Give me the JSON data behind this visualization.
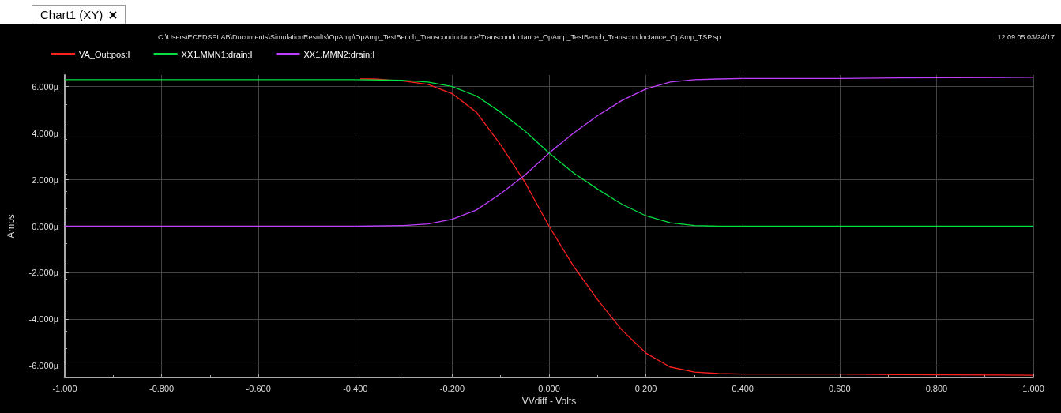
{
  "chart_data": {
    "type": "line",
    "xlabel": "VVdiff - Volts",
    "ylabel": "Amps",
    "annotations": [
      "Chart1 (XY)",
      "C:\\Users\\ECEDSPLAB\\Documents\\SimulationResults\\OpAmp\\OpAmp_TestBench_Transconductance\\Transconductance_OpAmp_TestBench_Transconductance_OpAmp_TSP.sp",
      "12:09:05 03/24/17"
    ],
    "x": [
      -1,
      -0.4,
      -0.3,
      -0.25,
      -0.2,
      -0.15,
      -0.1,
      -0.05,
      0,
      0.05,
      0.1,
      0.15,
      0.2,
      0.25,
      0.3,
      0.35,
      0.4,
      0.6,
      0.72,
      1
    ],
    "series": [
      {
        "name": "VA_Out:pos:I",
        "color": "#ff2020",
        "x": [
          -0.39,
          -0.36,
          -0.3,
          -0.25,
          -0.2,
          -0.15,
          -0.1,
          -0.05,
          0,
          0.05,
          0.1,
          0.15,
          0.2,
          0.25,
          0.3,
          0.35,
          0.4,
          0.6,
          0.72,
          1
        ],
        "values": [
          6.33,
          6.33,
          6.24,
          6.1,
          5.7,
          4.9,
          3.5,
          1.9,
          0,
          -1.7,
          -3.15,
          -4.45,
          -5.45,
          -6.05,
          -6.27,
          -6.33,
          -6.35,
          -6.35,
          -6.38,
          -6.4
        ]
      },
      {
        "name": "XX1.MMN1:drain:I",
        "color": "#00e040",
        "values": [
          6.3,
          6.3,
          6.27,
          6.2,
          6,
          5.6,
          4.9,
          4.1,
          3.15,
          2.3,
          1.6,
          0.95,
          0.45,
          0.15,
          0.03,
          0,
          0,
          0,
          0,
          0
        ]
      },
      {
        "name": "XX1.MMN2:drain:I",
        "color": "#c040ff",
        "values": [
          0,
          0,
          0.03,
          0.1,
          0.3,
          0.7,
          1.4,
          2.2,
          3.15,
          4,
          4.75,
          5.4,
          5.9,
          6.2,
          6.3,
          6.33,
          6.35,
          6.35,
          6.38,
          6.4
        ]
      }
    ],
    "xlim": [
      -1,
      1
    ],
    "xticks": [
      {
        "value": -1,
        "label": "-1.000"
      },
      {
        "value": -0.8,
        "label": "-0.800"
      },
      {
        "value": -0.6,
        "label": "-0.600"
      },
      {
        "value": -0.4,
        "label": "-0.400"
      },
      {
        "value": -0.2,
        "label": "-0.200"
      },
      {
        "value": 0,
        "label": "0.000"
      },
      {
        "value": 0.2,
        "label": "0.200"
      },
      {
        "value": 0.4,
        "label": "0.400"
      },
      {
        "value": 0.6,
        "label": "0.600"
      },
      {
        "value": 0.8,
        "label": "0.800"
      },
      {
        "value": 1,
        "label": "1.000"
      }
    ],
    "ylim": [
      -6.5,
      6.5
    ],
    "yticks": [
      {
        "value": -6,
        "label": "-6.000µ"
      },
      {
        "value": -4,
        "label": "-4.000µ"
      },
      {
        "value": -2,
        "label": "-2.000µ"
      },
      {
        "value": 0,
        "label": "0.000µ"
      },
      {
        "value": 2,
        "label": "2.000µ"
      },
      {
        "value": 4,
        "label": "4.000µ"
      },
      {
        "value": 6,
        "label": "6.000µ"
      }
    ],
    "grid": true,
    "legend": "top left",
    "marker": "none",
    "line_style": "solid"
  }
}
